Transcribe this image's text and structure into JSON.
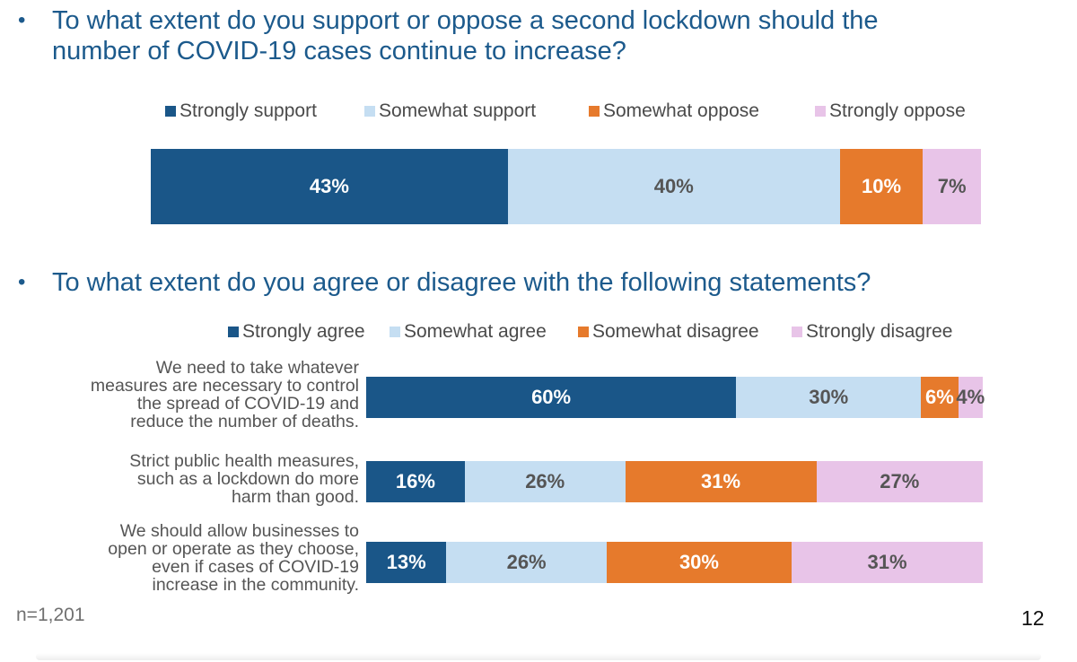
{
  "questions": {
    "q1": "To what extent do you support or oppose a second lockdown should the number of COVID-19 cases continue to increase?",
    "q1_line1": "To what extent do you support or oppose a second lockdown should the",
    "q1_line2": "number of COVID-19 cases continue to increase?",
    "q2": "To what extent do you agree or disagree with the following statements?",
    "bullet": "•"
  },
  "colors": {
    "strong_positive": "#1a5688",
    "somewhat_positive": "#c5def2",
    "somewhat_negative": "#e67a2c",
    "strong_negative": "#e8c4e8",
    "label_on_dark": "#ffffff",
    "label_on_light": "#555555"
  },
  "chart_data": [
    {
      "type": "bar",
      "orientation": "horizontal-stacked-100",
      "title": "",
      "legend": [
        "Strongly support",
        "Somewhat support",
        "Somewhat oppose",
        "Strongly oppose"
      ],
      "legend_placement": "top",
      "categories": [
        ""
      ],
      "series": [
        {
          "name": "Strongly support",
          "values": [
            43
          ],
          "labels": [
            "43%"
          ]
        },
        {
          "name": "Somewhat support",
          "values": [
            40
          ],
          "labels": [
            "40%"
          ]
        },
        {
          "name": "Somewhat oppose",
          "values": [
            10
          ],
          "labels": [
            "10%"
          ]
        },
        {
          "name": "Strongly oppose",
          "values": [
            7
          ],
          "labels": [
            "7%"
          ]
        }
      ]
    },
    {
      "type": "bar",
      "orientation": "horizontal-stacked-100",
      "title": "",
      "legend": [
        "Strongly agree",
        "Somewhat agree",
        "Somewhat disagree",
        "Strongly disagree"
      ],
      "legend_placement": "top",
      "categories": [
        "We need to take whatever measures are necessary to control the spread of COVID-19 and reduce the number of deaths.",
        "Strict public health measures, such as a lockdown do more harm than good.",
        "We should allow businesses to open or operate as they choose, even if cases of COVID-19 increase in the community."
      ],
      "category_lines": [
        [
          "We need to take whatever",
          "measures are necessary to control",
          "the spread of COVID-19 and",
          "reduce the number of deaths."
        ],
        [
          "Strict public health measures,",
          "such as a lockdown do more",
          "harm than good."
        ],
        [
          "We should allow businesses to",
          "open or operate as they choose,",
          "even if cases of COVID-19",
          "increase in the community."
        ]
      ],
      "series": [
        {
          "name": "Strongly agree",
          "values": [
            60,
            16,
            13
          ],
          "labels": [
            "60%",
            "16%",
            "13%"
          ]
        },
        {
          "name": "Somewhat agree",
          "values": [
            30,
            26,
            26
          ],
          "labels": [
            "30%",
            "26%",
            "26%"
          ]
        },
        {
          "name": "Somewhat disagree",
          "values": [
            6,
            31,
            30
          ],
          "labels": [
            "6%",
            "31%",
            "30%"
          ]
        },
        {
          "name": "Strongly disagree",
          "values": [
            4,
            27,
            31
          ],
          "labels": [
            "4%",
            "27%",
            "31%"
          ]
        }
      ]
    }
  ],
  "footer": {
    "sample": "n=1,201",
    "page_number": "12"
  }
}
